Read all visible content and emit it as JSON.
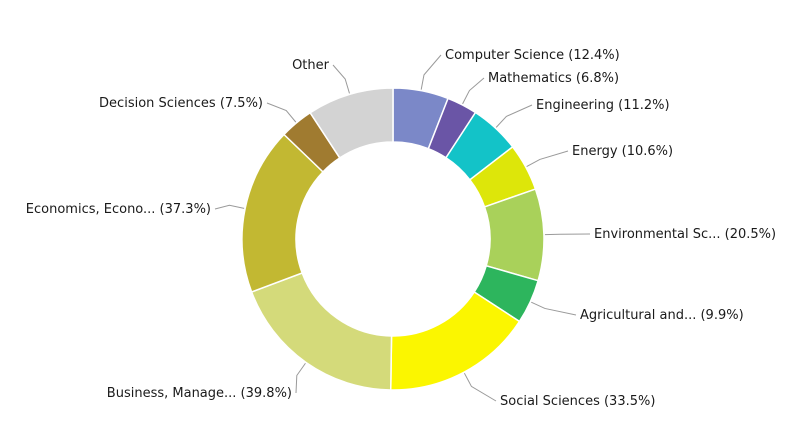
{
  "chart_data": {
    "type": "pie",
    "variant": "donut",
    "legend": "none",
    "slices": [
      {
        "name": "Computer Science",
        "label": "Computer Science (12.4%)",
        "value": 12.4,
        "color": "#7b88c8"
      },
      {
        "name": "Mathematics",
        "label": "Mathematics (6.8%)",
        "value": 6.8,
        "color": "#6a55a6"
      },
      {
        "name": "Engineering",
        "label": "Engineering (11.2%)",
        "value": 11.2,
        "color": "#13c3c8"
      },
      {
        "name": "Energy",
        "label": "Energy (10.6%)",
        "value": 10.6,
        "color": "#dde60a"
      },
      {
        "name": "Environmental Sc...",
        "label": "Environmental Sc... (20.5%)",
        "value": 20.5,
        "color": "#a9d15a"
      },
      {
        "name": "Agricultural and...",
        "label": "Agricultural and... (9.9%)",
        "value": 9.9,
        "color": "#2db55d"
      },
      {
        "name": "Social Sciences",
        "label": "Social Sciences (33.5%)",
        "value": 33.5,
        "color": "#fbf600"
      },
      {
        "name": "Business, Manage...",
        "label": "Business, Manage... (39.8%)",
        "value": 39.8,
        "color": "#d4da7a"
      },
      {
        "name": "Economics, Econo...",
        "label": "Economics, Econo... (37.3%)",
        "value": 37.3,
        "color": "#c2b832"
      },
      {
        "name": "Decision Sciences",
        "label": "Decision Sciences (7.5%)",
        "value": 7.5,
        "color": "#a07b30"
      },
      {
        "name": "Other",
        "label": "Other",
        "value": 19.3,
        "color": "#d3d3d3"
      }
    ]
  }
}
